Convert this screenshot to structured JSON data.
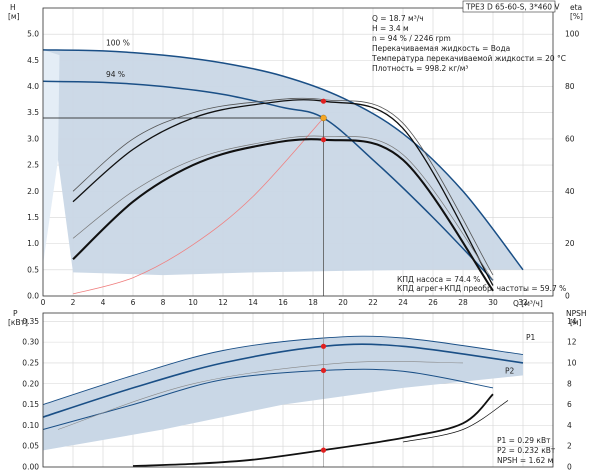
{
  "model": "TPE3 D 65-60-S, 3*460 V",
  "operating_point_info": [
    "Q = 18.7 м³/ч",
    "H = 3.4 м",
    "n = 94 % / 2246 rpm",
    "Перекачиваемая жидкость = Вода",
    "Температура перекачиваемой жидкости = 20 °C",
    "Плотность = 998.2 кг/м³"
  ],
  "efficiency_info": [
    "КПД насоса = 74.4 %",
    "КПД агрег+КПД преобр. частоты = 59.7 %"
  ],
  "power_info": [
    "P1 = 0.29 кВт",
    "P2 = 0.232 кВт",
    "NPSH = 1.62 м"
  ],
  "colors": {
    "envelope_fill": "#c9d7e6",
    "envelope_light": "#e4edf6",
    "curve_blue": "#1a4f86",
    "curve_black": "#111111",
    "system_curve": "#f08080",
    "marker_red": "#e02020",
    "marker_orange": "#f5a623"
  },
  "chart_data": [
    {
      "type": "line",
      "name": "Q-H",
      "y_label_top": "H",
      "y_unit": "[м]",
      "x_unit": "Q [м³/ч]",
      "y2_label": "eta",
      "y2_unit": "[%]",
      "xlim": [
        0,
        34
      ],
      "ylim": [
        0,
        5.5
      ],
      "y2lim": [
        0,
        110
      ],
      "x_ticks": [
        0,
        2,
        4,
        6,
        8,
        10,
        12,
        14,
        16,
        18,
        20,
        22,
        24,
        26,
        28,
        30,
        32
      ],
      "y_ticks": [
        0,
        0.5,
        1.0,
        1.5,
        2.0,
        2.5,
        3.0,
        3.5,
        4.0,
        4.5,
        5.0
      ],
      "y2_ticks": [
        0,
        20,
        40,
        60,
        80,
        100
      ],
      "grid": true,
      "series": [
        {
          "name": "100 %",
          "role": "head",
          "x": [
            0,
            4,
            8,
            12,
            16,
            20,
            24,
            28,
            32
          ],
          "y": [
            4.7,
            4.68,
            4.6,
            4.45,
            4.2,
            3.78,
            3.1,
            2.0,
            0.5
          ]
        },
        {
          "name": "94 %",
          "role": "head",
          "x": [
            0,
            4,
            8,
            12,
            16,
            18.7,
            22,
            26,
            30
          ],
          "y": [
            4.1,
            4.08,
            4.0,
            3.85,
            3.6,
            3.4,
            2.6,
            1.5,
            0.3
          ]
        },
        {
          "name": "",
          "role": "system",
          "x": [
            2,
            6,
            10,
            14,
            18.7
          ],
          "y": [
            0.04,
            0.35,
            0.98,
            1.9,
            3.4
          ]
        },
        {
          "name": "",
          "role": "eta_pump_100",
          "x": [
            2,
            6,
            10,
            14,
            18.7,
            24,
            30
          ],
          "y": [
            40,
            60,
            70,
            74,
            75,
            66,
            8
          ]
        },
        {
          "name": "",
          "role": "eta_pump_94",
          "x": [
            2,
            6,
            10,
            14,
            18.7,
            24,
            30
          ],
          "y": [
            36,
            56,
            68,
            73,
            74.4,
            64,
            4
          ]
        },
        {
          "name": "",
          "role": "eta_total_100",
          "x": [
            2,
            6,
            10,
            14,
            18.7,
            24,
            30
          ],
          "y": [
            22,
            40,
            52,
            58,
            61,
            54,
            6
          ]
        },
        {
          "name": "",
          "role": "eta_total_94",
          "x": [
            2,
            6,
            10,
            14,
            18.7,
            24,
            30
          ],
          "y": [
            14,
            36,
            50,
            57,
            59.7,
            52,
            2
          ]
        }
      ],
      "operating_point": {
        "q": 18.7,
        "h": 3.4,
        "eta_pump": 74.4,
        "eta_total": 59.7
      }
    },
    {
      "type": "line",
      "name": "Q-P / NPSH",
      "y_label_top": "P",
      "y_unit": "[кВт]",
      "y2_label": "NPSH",
      "y2_unit": "[м]",
      "xlim": [
        0,
        34
      ],
      "ylim": [
        0,
        0.37
      ],
      "y2lim": [
        0,
        14.8
      ],
      "y_ticks": [
        0,
        0.05,
        0.1,
        0.15,
        0.2,
        0.25,
        0.3,
        0.35
      ],
      "y2_ticks": [
        0,
        2,
        4,
        6,
        8,
        10,
        12,
        14
      ],
      "grid": true,
      "series": [
        {
          "name": "P1",
          "role": "p1_envelope",
          "x": [
            0,
            6,
            12,
            18.7,
            24,
            32
          ],
          "y": [
            0.15,
            0.22,
            0.28,
            0.31,
            0.31,
            0.27
          ]
        },
        {
          "name": "",
          "role": "p1",
          "x": [
            0,
            6,
            12,
            18.7,
            24,
            32
          ],
          "y": [
            0.12,
            0.19,
            0.25,
            0.29,
            0.29,
            0.25
          ]
        },
        {
          "name": "P2",
          "role": "p2",
          "x": [
            0,
            6,
            12,
            18.7,
            24,
            30
          ],
          "y": [
            0.09,
            0.15,
            0.21,
            0.232,
            0.23,
            0.19
          ]
        },
        {
          "name": "",
          "role": "npsh",
          "x": [
            6,
            10,
            14,
            18.7,
            24,
            28,
            30
          ],
          "y": [
            0.1,
            0.3,
            0.7,
            1.62,
            2.8,
            4.2,
            7.0
          ]
        }
      ],
      "operating_point": {
        "q": 18.7,
        "p1": 0.29,
        "p2": 0.232,
        "npsh": 1.62
      }
    }
  ]
}
